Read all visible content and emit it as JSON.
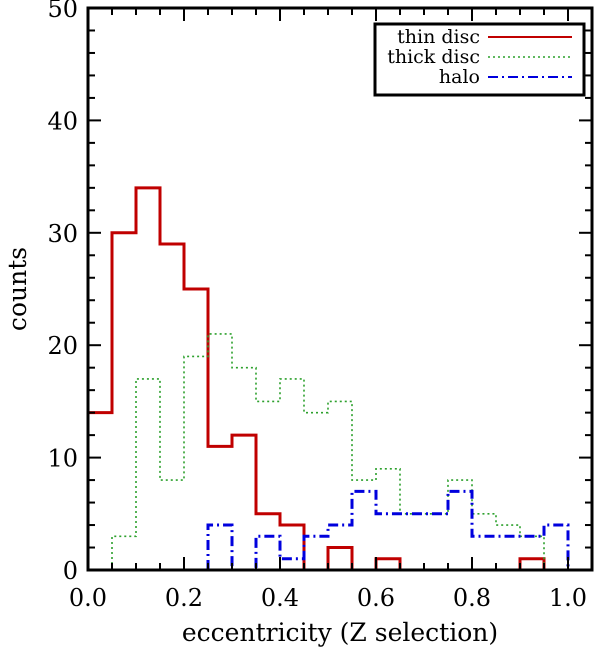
{
  "chart_data": {
    "type": "histogram",
    "xlabel": "eccentricity (Z selection)",
    "ylabel": "counts",
    "xlim": [
      0.0,
      1.05
    ],
    "ylim": [
      0,
      50
    ],
    "bin_width": 0.05,
    "bin_edges": [
      0.0,
      0.05,
      0.1,
      0.15,
      0.2,
      0.25,
      0.3,
      0.35,
      0.4,
      0.45,
      0.5,
      0.55,
      0.6,
      0.65,
      0.7,
      0.75,
      0.8,
      0.85,
      0.9,
      0.95,
      1.0
    ],
    "x_ticks": [
      0.0,
      0.2,
      0.4,
      0.6,
      0.8,
      1.0
    ],
    "x_tick_labels": [
      "0.0",
      "0.2",
      "0.4",
      "0.6",
      "0.8",
      "1.0"
    ],
    "y_ticks": [
      0,
      10,
      20,
      30,
      40,
      50
    ],
    "y_tick_labels": [
      "0",
      "10",
      "20",
      "30",
      "40",
      "50"
    ],
    "grid": false,
    "legend_position": "top-right",
    "series": [
      {
        "name": "thin disc",
        "color": "#c00000",
        "style": "solid",
        "values": [
          14,
          30,
          34,
          29,
          25,
          11,
          12,
          5,
          4,
          0,
          2,
          0,
          1,
          0,
          0,
          0,
          0,
          0,
          1,
          0
        ]
      },
      {
        "name": "thick disc",
        "color": "#2ca02c",
        "style": "dotted",
        "values": [
          0,
          3,
          17,
          8,
          19,
          21,
          18,
          15,
          17,
          14,
          15,
          8,
          9,
          5,
          5,
          8,
          5,
          4,
          3,
          0
        ]
      },
      {
        "name": "halo",
        "color": "#0000dd",
        "style": "dashdot",
        "values": [
          0,
          0,
          0,
          0,
          0,
          4,
          0,
          3,
          1,
          3,
          4,
          7,
          5,
          5,
          5,
          7,
          3,
          3,
          3,
          4
        ]
      }
    ]
  }
}
